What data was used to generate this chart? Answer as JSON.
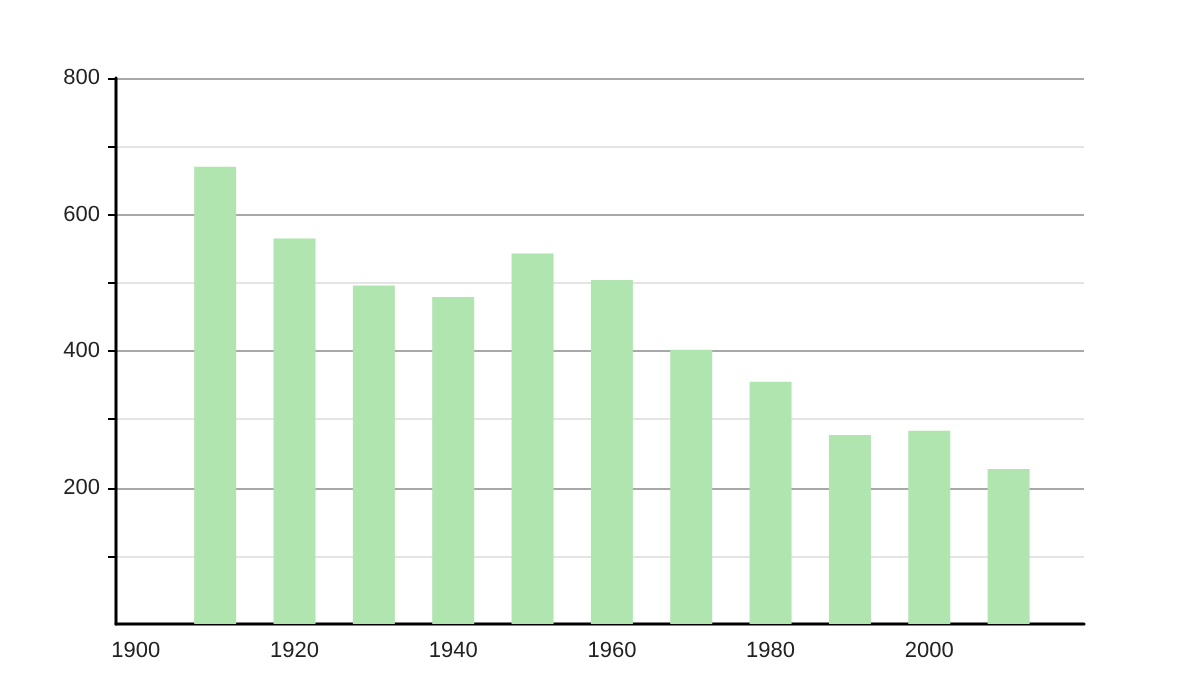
{
  "chart_data": {
    "type": "bar",
    "x": [
      1910,
      1920,
      1930,
      1940,
      1950,
      1960,
      1970,
      1980,
      1990,
      2000,
      2010
    ],
    "values": [
      670,
      565,
      496,
      479,
      543,
      504,
      402,
      355,
      277,
      283,
      227
    ],
    "color": "#b0e5b0",
    "xlim": [
      1897.5,
      2019.5
    ],
    "xticks": [
      1900,
      1920,
      1940,
      1960,
      1980,
      2000
    ],
    "ylim": [
      0,
      800
    ],
    "yticks": [
      {
        "value": 100,
        "label": null
      },
      200,
      {
        "value": 300,
        "label": null
      },
      400,
      {
        "value": 500,
        "label": null
      },
      600,
      {
        "value": 700,
        "label": null
      },
      800
    ],
    "grid": "y"
  }
}
